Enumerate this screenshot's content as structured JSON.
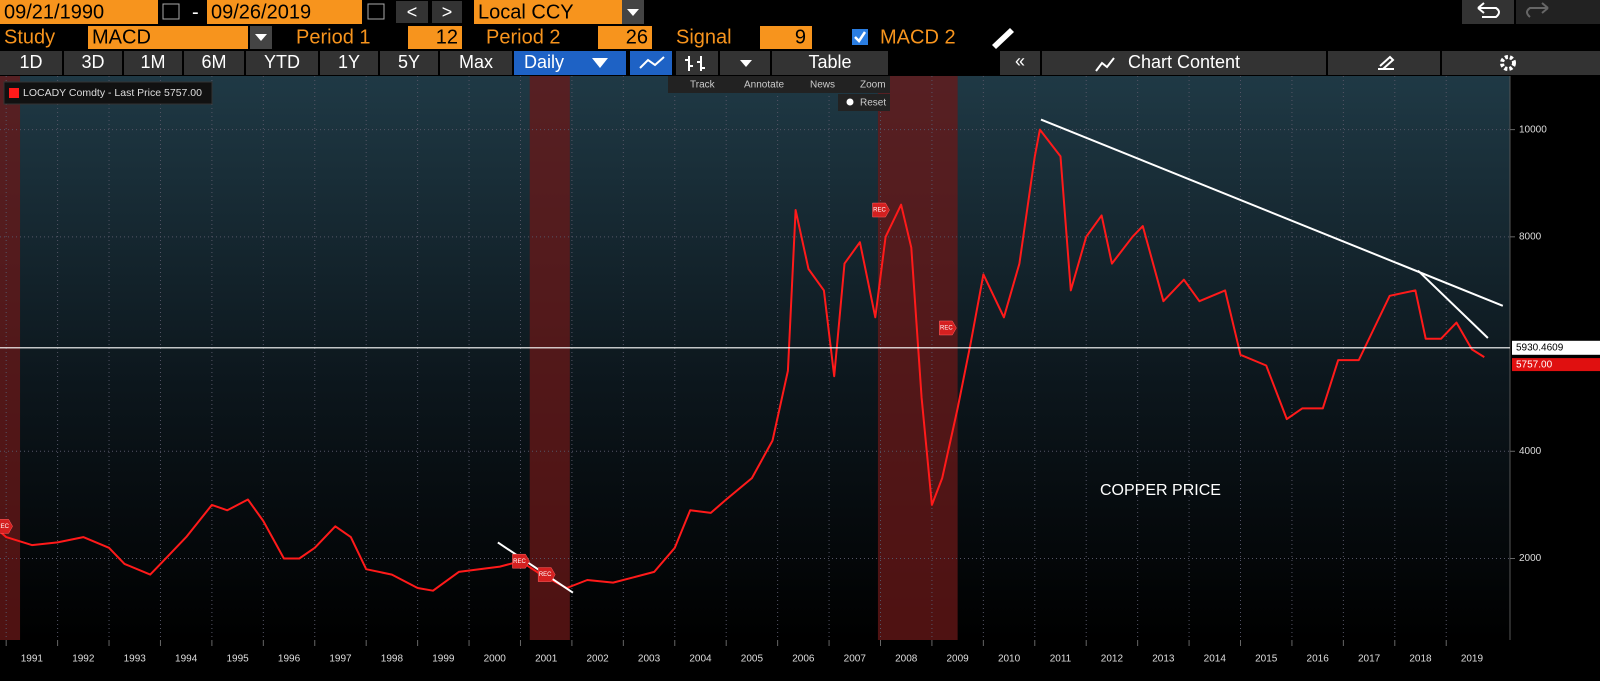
{
  "toolbar": {
    "start_date": "09/21/1990",
    "dash": "-",
    "end_date": "09/26/2019",
    "prev": "<",
    "next": ">",
    "currency": "Local CCY",
    "study_label": "Study",
    "study": "MACD",
    "period1_label": "Period 1",
    "period1": "12",
    "period2_label": "Period 2",
    "period2": "26",
    "signal_label": "Signal",
    "signal": "9",
    "macd2": "MACD 2",
    "ranges": [
      "1D",
      "3D",
      "1M",
      "6M",
      "YTD",
      "1Y",
      "5Y",
      "Max"
    ],
    "interval": "Daily",
    "table": "Table",
    "collapse": "«",
    "chart_content": "Chart Content",
    "tools": [
      "Track",
      "Annotate",
      "News",
      "Zoom"
    ],
    "reset": "Reset"
  },
  "chart_data": {
    "type": "line",
    "series": [
      {
        "name": "LOCADY Comdty - Last Price 5757.00",
        "color": "#ff1a1a",
        "x": [
          1990.88,
          1991.0,
          1991.5,
          1992.0,
          1992.5,
          1993.0,
          1993.3,
          1993.8,
          1994.0,
          1994.5,
          1995.0,
          1995.3,
          1995.7,
          1996.0,
          1996.4,
          1996.7,
          1997.0,
          1997.4,
          1997.7,
          1998.0,
          1998.5,
          1999.0,
          1999.3,
          1999.8,
          2000.2,
          2000.6,
          2001.0,
          2001.4,
          2001.9,
          2002.3,
          2002.8,
          2003.2,
          2003.6,
          2004.0,
          2004.3,
          2004.7,
          2005.0,
          2005.5,
          2005.9,
          2006.2,
          2006.35,
          2006.6,
          2006.9,
          2007.1,
          2007.3,
          2007.6,
          2007.9,
          2008.1,
          2008.4,
          2008.6,
          2008.8,
          2009.0,
          2009.2,
          2009.5,
          2009.75,
          2010.0,
          2010.4,
          2010.7,
          2011.0,
          2011.1,
          2011.5,
          2011.7,
          2012.0,
          2012.3,
          2012.5,
          2012.9,
          2013.1,
          2013.5,
          2013.9,
          2014.2,
          2014.7,
          2015.0,
          2015.5,
          2015.9,
          2016.2,
          2016.6,
          2016.9,
          2017.3,
          2017.6,
          2017.9,
          2018.4,
          2018.6,
          2018.9,
          2019.2,
          2019.5,
          2019.74
        ],
        "values": [
          2500,
          2400,
          2250,
          2300,
          2400,
          2200,
          1900,
          1700,
          1900,
          2400,
          3000,
          2900,
          3100,
          2700,
          2000,
          2000,
          2200,
          2600,
          2400,
          1800,
          1700,
          1450,
          1400,
          1750,
          1800,
          1850,
          1950,
          1700,
          1450,
          1600,
          1550,
          1650,
          1750,
          2200,
          2900,
          2850,
          3100,
          3500,
          4200,
          5500,
          8500,
          7400,
          7000,
          5400,
          7500,
          7900,
          6500,
          8000,
          8600,
          7800,
          5000,
          3000,
          3500,
          4800,
          6000,
          7300,
          6500,
          7500,
          9500,
          10000,
          9500,
          7000,
          8000,
          8400,
          7500,
          8000,
          8200,
          6800,
          7200,
          6800,
          7000,
          5800,
          5600,
          4600,
          4800,
          4800,
          5700,
          5700,
          6300,
          6900,
          7000,
          6100,
          6100,
          6400,
          5900,
          5757
        ]
      }
    ],
    "xlim": [
      1990.88,
      2020.24
    ],
    "xticks": [
      1991,
      1992,
      1993,
      1994,
      1995,
      1996,
      1997,
      1998,
      1999,
      2000,
      2001,
      2002,
      2003,
      2004,
      2005,
      2006,
      2007,
      2008,
      2009,
      2010,
      2011,
      2012,
      2013,
      2014,
      2015,
      2016,
      2017,
      2018,
      2019
    ],
    "ylim": [
      480,
      11000
    ],
    "yticks": [
      2000,
      4000,
      8000,
      10000
    ],
    "grid": true,
    "recessions": [
      [
        1990.88,
        1991.27
      ],
      [
        2001.18,
        2001.96
      ],
      [
        2007.95,
        2009.5
      ]
    ],
    "rec_markers": {
      "label": "REC",
      "points": [
        [
          1990.95,
          2600
        ],
        [
          2001.0,
          1950
        ],
        [
          2001.5,
          1700
        ],
        [
          2008.0,
          8500
        ],
        [
          2009.3,
          6300
        ]
      ]
    },
    "trendlines": [
      {
        "color": "#ffffff",
        "x": [
          2011.12,
          2020.1
        ],
        "values": [
          10188,
          6714
        ]
      },
      {
        "color": "#ffffff",
        "x": [
          2018.45,
          2019.81
        ],
        "values": [
          7371,
          6113
        ]
      },
      {
        "color": "#ffffff",
        "x": [
          2000.56,
          2002.02
        ],
        "values": [
          2300,
          1362
        ]
      }
    ],
    "price_line": 5930.4609,
    "last_price": {
      "value": 5757,
      "label": "5757.00"
    },
    "annotation": "COPPER PRICE"
  }
}
